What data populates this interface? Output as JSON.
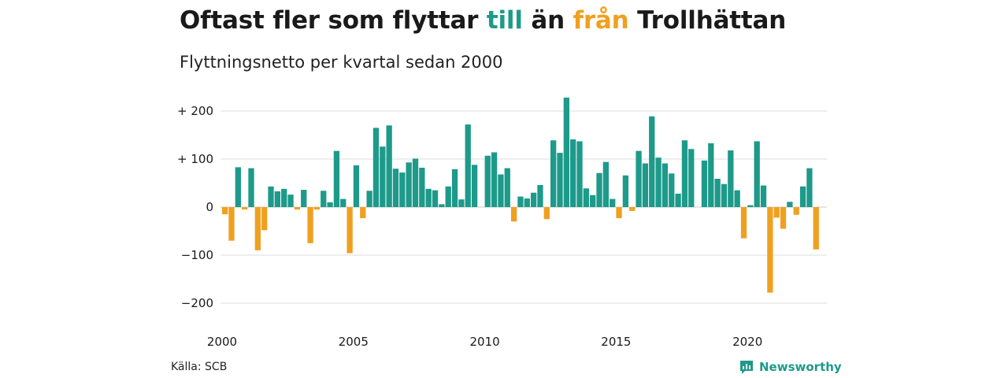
{
  "header": {
    "title_part1": "Oftast fler som flyttar ",
    "title_in": "till",
    "title_part2": " än ",
    "title_out": "från",
    "title_part3": " Trollhättan",
    "subtitle": "Flyttningsnetto per kvartal sedan 2000"
  },
  "footer": {
    "source": "Källa: SCB",
    "brand": "Newsworthy",
    "brand_icon": "newsworthy-logo-icon"
  },
  "colors": {
    "positive": "#1d9a8a",
    "negative": "#f0a020",
    "grid": "#dddddd",
    "text": "#1a1a1a"
  },
  "chart_data": {
    "type": "bar",
    "title": "Oftast fler som flyttar till än från Trollhättan",
    "subtitle": "Flyttningsnetto per kvartal sedan 2000",
    "x_start_year": 2000,
    "periods_per_year": 4,
    "x_ticks": [
      "2000",
      "2005",
      "2010",
      "2015",
      "2020"
    ],
    "y_ticks": [
      200,
      100,
      0,
      -100,
      -200
    ],
    "y_tick_labels": [
      "+ 200",
      "+ 100",
      "0",
      "−100",
      "−200"
    ],
    "ylim": [
      -200,
      230
    ],
    "grid": true,
    "values": [
      -15,
      -70,
      83,
      -5,
      81,
      -90,
      -48,
      43,
      33,
      38,
      26,
      -5,
      36,
      -75,
      -5,
      34,
      10,
      117,
      17,
      -96,
      87,
      -23,
      34,
      165,
      126,
      170,
      80,
      72,
      93,
      101,
      82,
      38,
      35,
      6,
      43,
      79,
      16,
      172,
      88,
      0,
      107,
      114,
      68,
      81,
      -30,
      22,
      18,
      30,
      46,
      -25,
      139,
      113,
      228,
      141,
      137,
      39,
      25,
      71,
      94,
      17,
      -23,
      66,
      -8,
      117,
      91,
      189,
      103,
      91,
      70,
      28,
      139,
      121,
      0,
      97,
      133,
      59,
      48,
      118,
      35,
      -65,
      4,
      137,
      45,
      -178,
      -22,
      -45,
      11,
      -16,
      43,
      81,
      -88
    ]
  }
}
